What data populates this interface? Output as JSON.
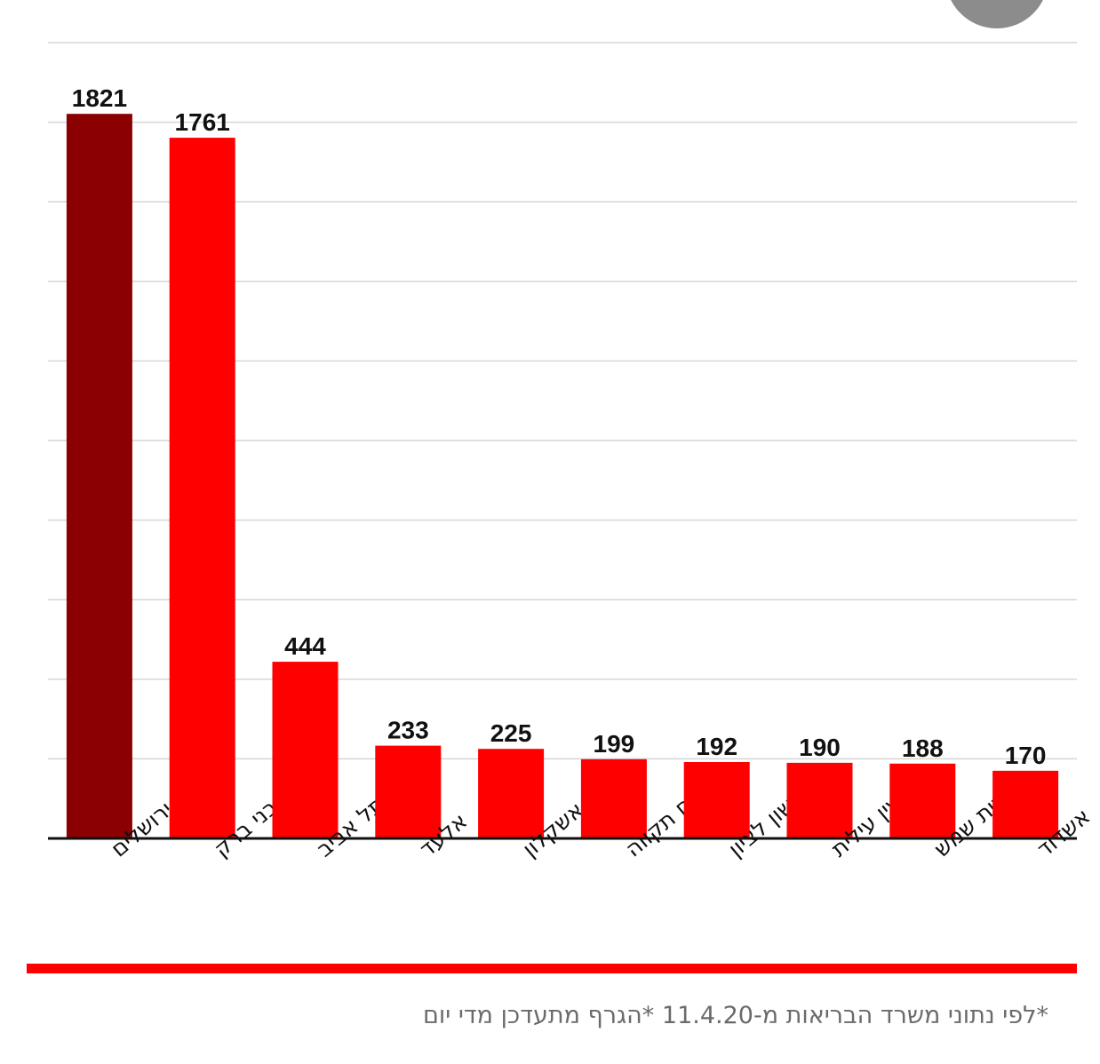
{
  "chart_data": {
    "type": "bar",
    "categories": [
      "ירושלים",
      "בני ברק",
      "תל אביב",
      "אלעד",
      "אשקלון",
      "פתח תקווה",
      "ראשון לציון",
      "מודיעין עילית",
      "בית שמש",
      "אשדוד"
    ],
    "values": [
      1821,
      1761,
      444,
      233,
      225,
      199,
      192,
      190,
      188,
      170
    ],
    "colors": [
      "#8b0000",
      "#ff0000",
      "#ff0000",
      "#ff0000",
      "#ff0000",
      "#ff0000",
      "#ff0000",
      "#ff0000",
      "#ff0000",
      "#ff0000"
    ],
    "ylim": [
      0,
      2000
    ],
    "grid": true,
    "title": "",
    "xlabel": "",
    "ylabel": ""
  },
  "footnote": "*לפי נתוני משרד הבריאות מ-11.4.20 *הגרף מתעדכן מדי יום",
  "colors": {
    "highlight_bar": "#8b0000",
    "bar": "#ff0000",
    "accent_line": "#ff0000"
  }
}
